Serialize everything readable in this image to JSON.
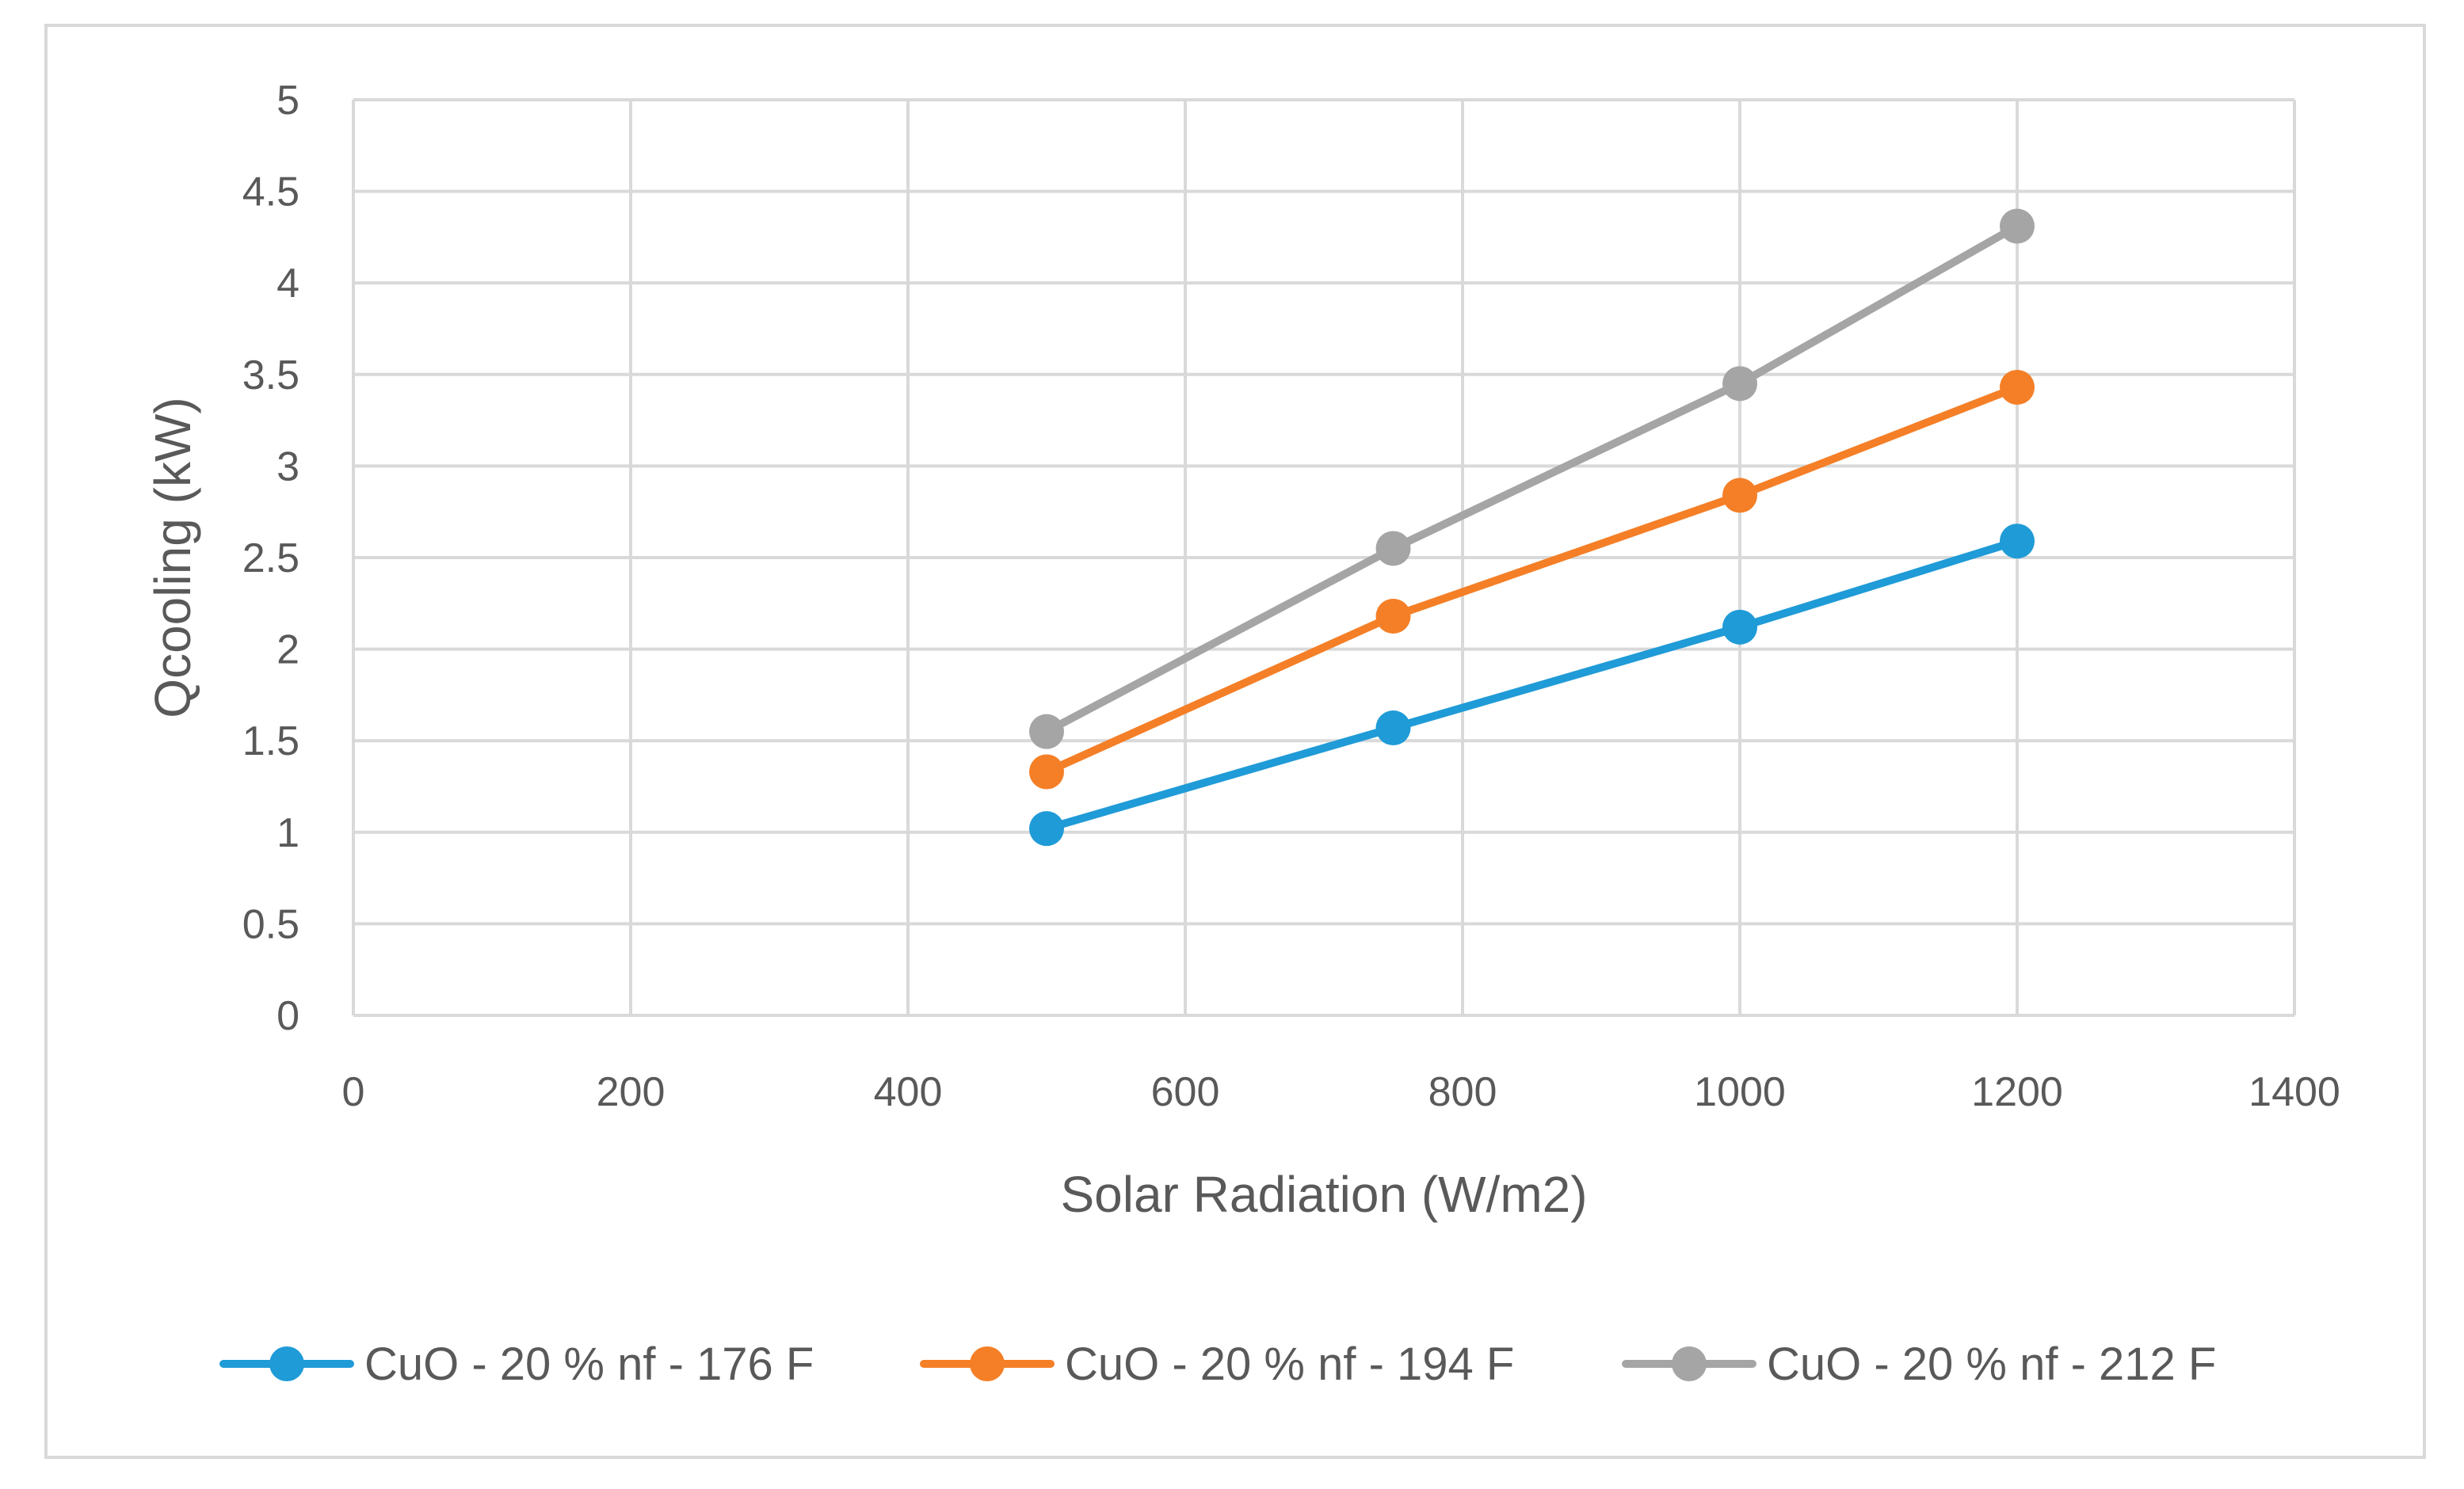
{
  "chart_data": {
    "type": "line",
    "title": "",
    "xlabel": "Solar Radiation (W/m2)",
    "ylabel": "Qcooling (kW)",
    "xlim": [
      0,
      1400
    ],
    "ylim": [
      0,
      5
    ],
    "xticks": [
      0,
      200,
      400,
      600,
      800,
      1000,
      1200,
      1400
    ],
    "yticks": [
      0,
      0.5,
      1,
      1.5,
      2,
      2.5,
      3,
      3.5,
      4,
      4.5,
      5
    ],
    "xtick_labels": [
      "0",
      "200",
      "400",
      "600",
      "800",
      "1000",
      "1200",
      "1400"
    ],
    "ytick_labels": [
      "0",
      "0.5",
      "1",
      "1.5",
      "2",
      "2.5",
      "3",
      "3.5",
      "4",
      "4.5",
      "5"
    ],
    "grid": true,
    "legend_position": "bottom",
    "x": [
      500,
      750,
      1000,
      1200
    ],
    "series": [
      {
        "name": "CuO - 20 % nf - 176 F",
        "color": "#1f9bd7",
        "values": [
          1.02,
          1.57,
          2.12,
          2.59
        ]
      },
      {
        "name": "CuO - 20 % nf - 194 F",
        "color": "#f47f27",
        "values": [
          1.33,
          2.18,
          2.84,
          3.43
        ]
      },
      {
        "name": "CuO - 20 % nf - 212 F",
        "color": "#a5a5a5",
        "values": [
          1.55,
          2.55,
          3.45,
          4.31
        ]
      }
    ]
  }
}
